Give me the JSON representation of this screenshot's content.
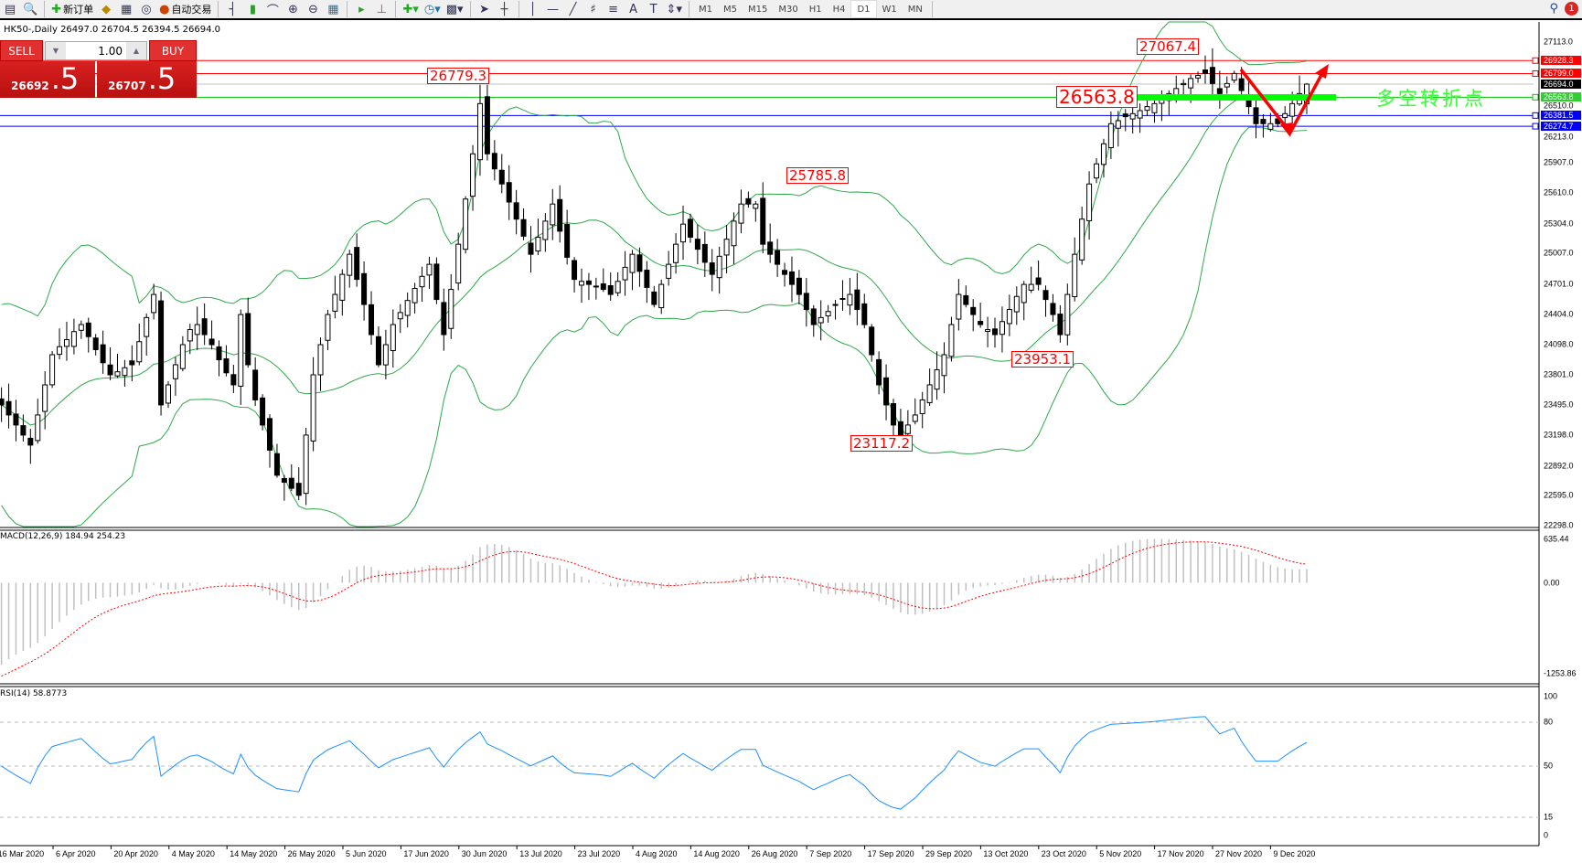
{
  "toolbar": {
    "new_order": "新订单",
    "auto_trading": "自动交易",
    "icons": [
      "new-chart-icon",
      "profiles-icon",
      "new-order-icon",
      "market-watch-icon",
      "data-window-icon",
      "navigator-icon",
      "auto-trading-icon",
      "bar-chart-icon",
      "candlestick-icon",
      "line-chart-icon",
      "zoom-in-icon",
      "zoom-out-icon",
      "tile-windows-icon",
      "auto-scroll-icon",
      "chart-shift-icon",
      "indicators-icon",
      "periods-icon",
      "templates-icon",
      "cursor-icon",
      "crosshair-icon",
      "vertical-line-icon",
      "horizontal-line-icon",
      "trendline-icon",
      "fibonacci-icon",
      "text-icon",
      "text-label-icon",
      "arrows-icon",
      "search-icon",
      "notification-icon"
    ],
    "timeframes": [
      "M1",
      "M5",
      "M15",
      "M30",
      "H1",
      "H4",
      "D1",
      "W1",
      "MN"
    ],
    "active_timeframe": "D1",
    "notifications": "1"
  },
  "chart": {
    "title": "HK50-,Daily  26497.0 26704.5 26394.5 26694.0",
    "one_click": {
      "sell": "SELL",
      "buy": "BUY",
      "volume": "1.00",
      "sell_price_main": "26692",
      "sell_price_frac": ".5",
      "buy_price_main": "26707",
      "buy_price_frac": ".5"
    },
    "price_axis": [
      "27113.0",
      "26510.0",
      "26213.0",
      "25907.0",
      "25610.0",
      "25304.0",
      "25007.0",
      "24701.0",
      "24404.0",
      "24098.0",
      "23801.0",
      "23495.0",
      "23198.0",
      "22892.0",
      "22595.0",
      "22298.0"
    ],
    "hlines": [
      {
        "value": "26928.3",
        "color": "#ff0000"
      },
      {
        "value": "26799.0",
        "color": "#ff0000"
      },
      {
        "value": "26694.0",
        "color": "#000000",
        "line": "#c0c0c0"
      },
      {
        "value": "26563.8",
        "color": "#33cc33",
        "line": "#00c000"
      },
      {
        "value": "26381.5",
        "color": "#0000ff"
      },
      {
        "value": "26274.7",
        "color": "#0000ff"
      }
    ],
    "price_labels": [
      "26779.3",
      "25785.8",
      "23953.1",
      "23117.2",
      "27067.4",
      "26563.8"
    ],
    "annotation_text": "多空转折点",
    "colors": {
      "bands": "#2ea84a",
      "arrow": "#ff0000",
      "pivot_bar": "#00ff00",
      "macd_hist": "#c0c0c0",
      "macd_signal": "#ff0000",
      "rsi": "#1e90ff"
    },
    "x_axis": [
      "16 Mar 2020",
      "6 Apr 2020",
      "20 Apr 2020",
      "4 May 2020",
      "14 May 2020",
      "26 May 2020",
      "5 Jun 2020",
      "17 Jun 2020",
      "30 Jun 2020",
      "13 Jul 2020",
      "23 Jul 2020",
      "4 Aug 2020",
      "14 Aug 2020",
      "26 Aug 2020",
      "7 Sep 2020",
      "17 Sep 2020",
      "29 Sep 2020",
      "13 Oct 2020",
      "23 Oct 2020",
      "5 Nov 2020",
      "17 Nov 2020",
      "27 Nov 2020",
      "9 Dec 2020"
    ]
  },
  "macd": {
    "label": "MACD(12,26,9) 184.94 254.23",
    "axis": [
      "635.44",
      "0.00",
      "-1253.86"
    ]
  },
  "rsi": {
    "label": "RSI(14) 58.8773",
    "axis": [
      "100",
      "80",
      "50",
      "15",
      "0"
    ]
  },
  "chart_data": {
    "type": "candlestick",
    "symbol": "HK50-",
    "timeframe": "Daily",
    "last_bar": {
      "open": 26497.0,
      "high": 26704.5,
      "low": 26394.5,
      "close": 26694.0
    },
    "ylim": [
      22298.0,
      27113.0
    ],
    "close": [
      23500,
      23400,
      23300,
      23200,
      23100,
      23400,
      23700,
      24000,
      24080,
      24150,
      24230,
      24300,
      24180,
      24050,
      23920,
      23800,
      23830,
      23870,
      23900,
      24130,
      24370,
      24600,
      23500,
      23700,
      23900,
      24100,
      24250,
      24300,
      24200,
      24100,
      23950,
      23820,
      23700,
      24400,
      23900,
      23550,
      23300,
      23050,
      22800,
      22730,
      22670,
      22600,
      23200,
      23800,
      24100,
      24400,
      24600,
      24800,
      25000,
      24750,
      24500,
      24200,
      23900,
      24100,
      24300,
      24420,
      24540,
      24660,
      24780,
      24900,
      24550,
      24200,
      24650,
      25100,
      25550,
      26000,
      26500,
      26000,
      25850,
      25700,
      25520,
      25350,
      25180,
      25000,
      25170,
      25330,
      25500,
      25230,
      24970,
      24750,
      24730,
      24700,
      24680,
      24650,
      24600,
      24730,
      24870,
      25000,
      24830,
      24670,
      24500,
      24700,
      24900,
      25100,
      25300,
      25170,
      25050,
      24920,
      24800,
      24980,
      25150,
      25330,
      25500,
      25500,
      25500,
      25100,
      25000,
      24900,
      24800,
      24700,
      24600,
      24450,
      24300,
      24370,
      24430,
      24500,
      24560,
      24600,
      24450,
      24300,
      24000,
      23700,
      23500,
      23300,
      23200,
      23300,
      23400,
      23550,
      23700,
      23850,
      24000,
      24300,
      24600,
      24500,
      24400,
      24300,
      24250,
      24200,
      24330,
      24450,
      24580,
      24700,
      24700,
      24700,
      24550,
      24400,
      24200,
      24600,
      25000,
      25350,
      25700,
      25900,
      26100,
      26300,
      26330,
      26370,
      26400,
      26430,
      26470,
      26500,
      26550,
      26600,
      26650,
      26700,
      26750,
      26780,
      26800,
      26700,
      26600,
      26700,
      26800,
      26630,
      26470,
      26300,
      26300,
      26300,
      26300,
      26400,
      26500,
      26600,
      26694
    ],
    "indicators": [
      "Bollinger Bands",
      "MACD(12,26,9)",
      "RSI(14)"
    ],
    "macd_ylim": [
      -1253.86,
      635.44
    ],
    "rsi_levels": [
      80,
      50,
      15
    ]
  }
}
